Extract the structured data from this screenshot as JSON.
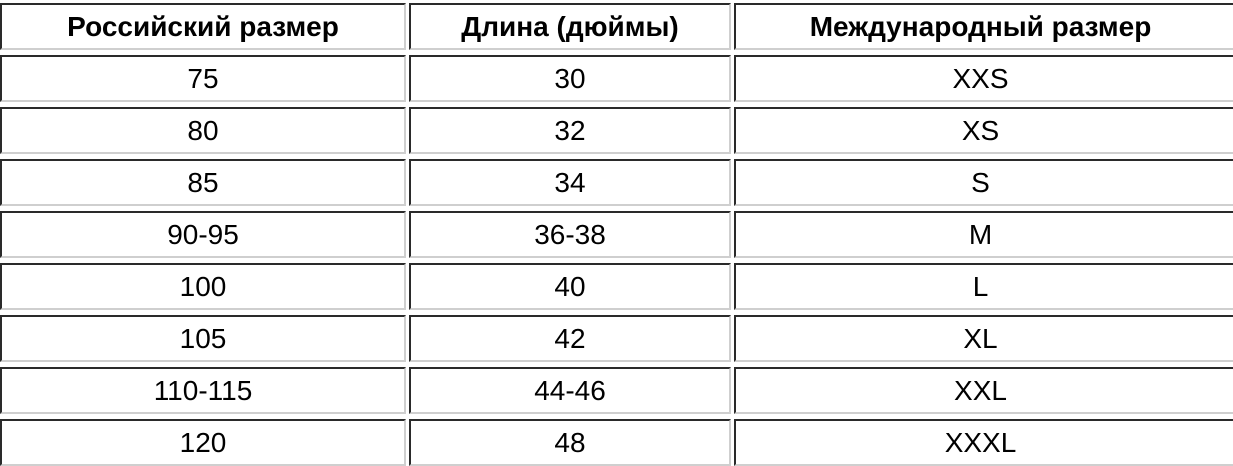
{
  "table": {
    "headers": [
      "Российский размер",
      "Длина (дюймы)",
      "Международный размер"
    ],
    "rows": [
      [
        "75",
        "30",
        "XXS"
      ],
      [
        "80",
        "32",
        "XS"
      ],
      [
        "85",
        "34",
        "S"
      ],
      [
        "90-95",
        "36-38",
        "M"
      ],
      [
        "100",
        "40",
        "L"
      ],
      [
        "105",
        "42",
        "XL"
      ],
      [
        "110-115",
        "44-46",
        "XXL"
      ],
      [
        "120",
        "48",
        "XXXL"
      ]
    ]
  }
}
